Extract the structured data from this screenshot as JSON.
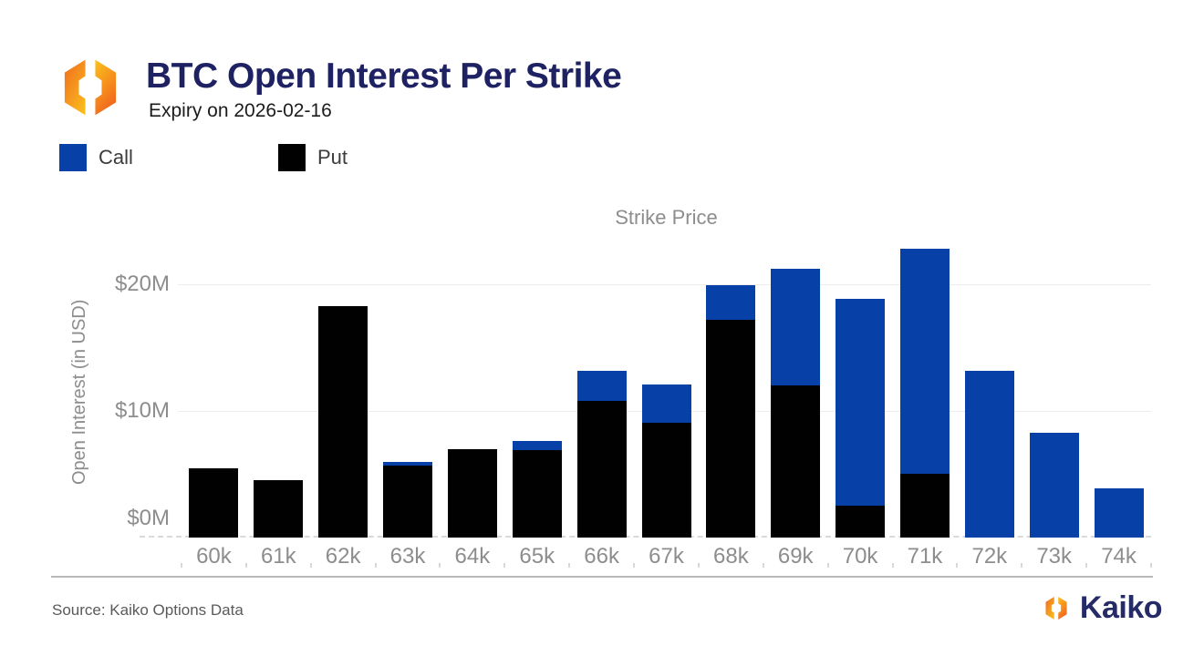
{
  "header": {
    "title": "BTC Open Interest Per Strike",
    "subtitle": "Expiry on 2026-02-16"
  },
  "legend": {
    "call": {
      "label": "Call",
      "color": "#0740a6"
    },
    "put": {
      "label": "Put",
      "color": "#010101"
    }
  },
  "chart_data": {
    "type": "bar",
    "stacked": true,
    "xlabel": "Strike Price",
    "ylabel": "Open Interest (in USD)",
    "categories": [
      "60k",
      "61k",
      "62k",
      "63k",
      "64k",
      "65k",
      "66k",
      "67k",
      "68k",
      "69k",
      "70k",
      "71k",
      "72k",
      "73k",
      "74k"
    ],
    "series": [
      {
        "name": "Put",
        "color": "#010101",
        "values": [
          5.5,
          4.5,
          18.3,
          5.7,
          7.0,
          6.9,
          10.8,
          9.1,
          17.2,
          12.0,
          2.5,
          5.0,
          0,
          0,
          0
        ]
      },
      {
        "name": "Call",
        "color": "#0740a6",
        "values": [
          0,
          0,
          0,
          0.3,
          0,
          0.7,
          2.4,
          3.0,
          2.7,
          9.2,
          16.3,
          17.8,
          13.2,
          8.3,
          3.9
        ]
      }
    ],
    "y_ticks": [
      {
        "value": 0,
        "label": "$0M"
      },
      {
        "value": 10,
        "label": "$10M"
      },
      {
        "value": 20,
        "label": "$20M"
      }
    ],
    "ylim": [
      0,
      23.5
    ],
    "unit": "USD millions",
    "legend_position": "top-left",
    "grid": "horizontal"
  },
  "footer": {
    "source": "Source: Kaiko Options Data",
    "brand": "Kaiko"
  }
}
